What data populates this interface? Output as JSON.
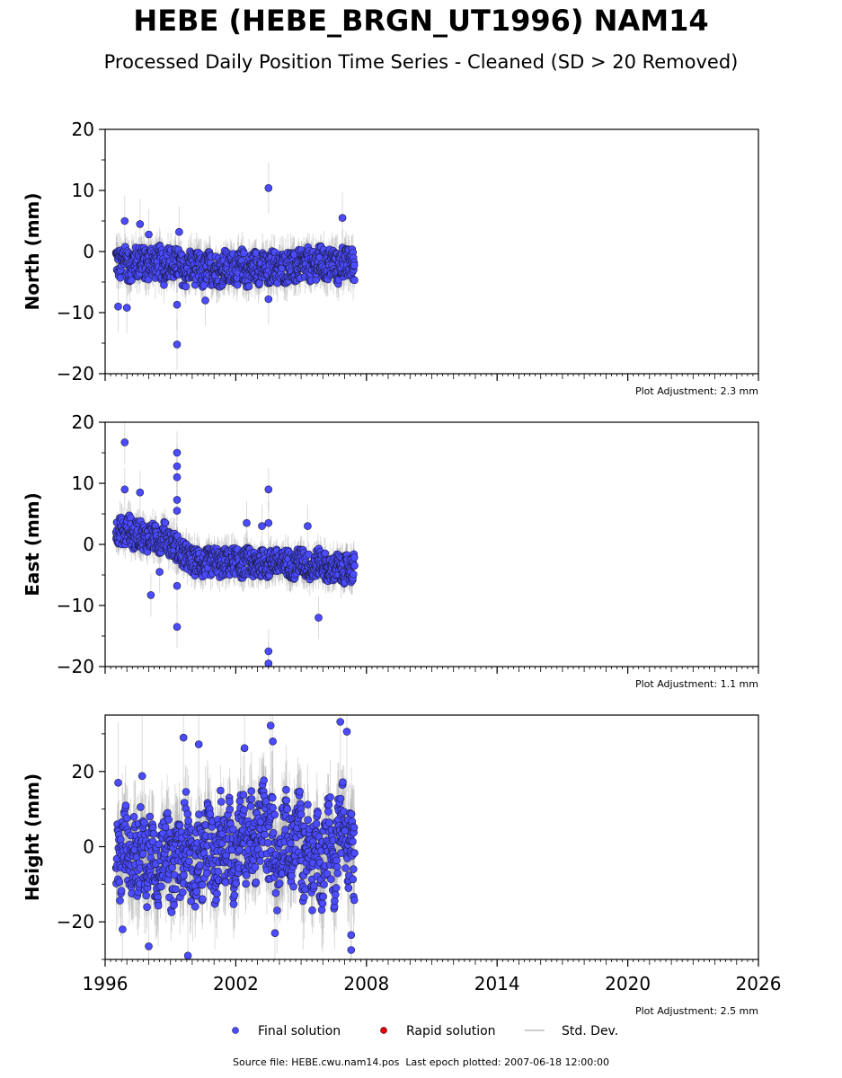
{
  "title": "HEBE (HEBE_BRGN_UT1996) NAM14",
  "subtitle": "Processed Daily Position Time Series - Cleaned (SD > 20 Removed)",
  "footer": {
    "source": "Source file: HEBE.cwu.nam14.pos",
    "last_epoch": "Last epoch plotted: 2007-06-18 12:00:00"
  },
  "legend": [
    {
      "label": "Final solution",
      "color": "#4b4bff",
      "marker": "dot"
    },
    {
      "label": "Rapid solution",
      "color": "#e00000",
      "marker": "dot"
    },
    {
      "label": "Std. Dev.",
      "color": "#cccccc",
      "marker": "line"
    }
  ],
  "chart_data": [
    {
      "type": "scatter",
      "ylabel": "North (mm)",
      "xlim": [
        1996,
        2026
      ],
      "ylim": [
        -20,
        20
      ],
      "yticks": [
        -20,
        -10,
        0,
        10,
        20
      ],
      "xticks": [
        1996,
        2002,
        2008,
        2014,
        2020,
        2026
      ],
      "show_x_tick_labels": false,
      "adjustment": "Plot Adjustment: 2.3 mm",
      "series": [
        {
          "name": "Final solution",
          "color": "#4b4bff",
          "x": [
            1996.5,
            1996.7,
            1996.9,
            1997.1,
            1997.3,
            1997.5,
            1997.7,
            1997.9,
            1998.1,
            1998.3,
            1998.5,
            1998.7,
            1998.9,
            1999.1,
            1999.3,
            1999.5,
            1999.7,
            1999.9,
            2000.1,
            2000.3,
            2000.5,
            2000.7,
            2000.9,
            2001.1,
            2001.3,
            2001.5,
            2001.7,
            2001.9,
            2002.1,
            2002.3,
            2002.5,
            2002.7,
            2002.9,
            2003.1,
            2003.3,
            2003.5,
            2003.7,
            2003.9,
            2004.1,
            2004.3,
            2004.5,
            2004.7,
            2004.9,
            2005.1,
            2005.3,
            2005.5,
            2005.7,
            2005.9,
            2006.1,
            2006.3,
            2006.5,
            2006.7,
            2006.9,
            2007.1,
            2007.3,
            2007.46
          ],
          "y": [
            -1.0,
            -2.5,
            -0.5,
            -3.0,
            -1.5,
            -2.0,
            -0.8,
            -2.8,
            -1.2,
            -2.0,
            -1.5,
            -3.0,
            -1.0,
            -2.5,
            -1.8,
            -2.8,
            -3.5,
            -2.0,
            -3.0,
            -2.5,
            -3.8,
            -2.2,
            -3.0,
            -2.8,
            -3.5,
            -2.0,
            -3.2,
            -2.5,
            -3.0,
            -2.0,
            -3.5,
            -2.8,
            -2.2,
            -3.0,
            -2.5,
            -3.5,
            -2.0,
            -3.0,
            -2.5,
            -2.8,
            -2.0,
            -3.0,
            -2.2,
            -2.5,
            -1.8,
            -2.8,
            -2.0,
            -1.5,
            -2.5,
            -2.0,
            -1.8,
            -3.0,
            -1.5,
            -2.2,
            -1.8,
            -2.5
          ],
          "spread": 2.6,
          "outliers_x": [
            1996.6,
            1996.9,
            1997.0,
            1997.6,
            1998.0,
            1999.3,
            1999.3,
            1999.4,
            2003.5,
            2003.5,
            2006.9,
            2000.6
          ],
          "outliers_y": [
            -9.0,
            5.0,
            -9.2,
            4.5,
            2.8,
            -15.2,
            -8.7,
            3.2,
            10.4,
            -7.8,
            5.5,
            -8.0
          ]
        },
        {
          "name": "Rapid solution",
          "color": "#e00000",
          "x": [],
          "y": []
        }
      ]
    },
    {
      "type": "scatter",
      "ylabel": "East (mm)",
      "xlim": [
        1996,
        2026
      ],
      "ylim": [
        -20,
        20
      ],
      "yticks": [
        -20,
        -10,
        0,
        10,
        20
      ],
      "xticks": [
        1996,
        2002,
        2008,
        2014,
        2020,
        2026
      ],
      "show_x_tick_labels": false,
      "adjustment": "Plot Adjustment: 1.1 mm",
      "series": [
        {
          "name": "Final solution",
          "color": "#4b4bff",
          "x": [
            1996.5,
            1996.7,
            1996.9,
            1997.1,
            1997.3,
            1997.5,
            1997.7,
            1997.9,
            1998.1,
            1998.3,
            1998.5,
            1998.7,
            1998.9,
            1999.1,
            1999.3,
            1999.5,
            1999.7,
            1999.9,
            2000.1,
            2000.3,
            2000.5,
            2000.7,
            2000.9,
            2001.1,
            2001.3,
            2001.5,
            2001.7,
            2001.9,
            2002.1,
            2002.3,
            2002.5,
            2002.7,
            2002.9,
            2003.1,
            2003.3,
            2003.5,
            2003.7,
            2003.9,
            2004.1,
            2004.3,
            2004.5,
            2004.7,
            2004.9,
            2005.1,
            2005.3,
            2005.5,
            2005.7,
            2005.9,
            2006.1,
            2006.3,
            2006.5,
            2006.7,
            2006.9,
            2007.1,
            2007.3,
            2007.46
          ],
          "y": [
            2.0,
            2.5,
            1.5,
            3.0,
            1.0,
            2.0,
            1.5,
            0.8,
            1.5,
            1.0,
            0.5,
            1.8,
            0.5,
            0.0,
            -0.5,
            -1.5,
            -2.0,
            -2.5,
            -3.0,
            -2.5,
            -3.5,
            -2.8,
            -3.0,
            -2.5,
            -3.5,
            -2.8,
            -3.2,
            -2.5,
            -3.0,
            -3.5,
            -2.5,
            -3.0,
            -3.8,
            -3.2,
            -2.8,
            -3.5,
            -2.5,
            -3.0,
            -3.5,
            -2.8,
            -3.2,
            -3.8,
            -2.5,
            -3.0,
            -3.5,
            -4.0,
            -3.0,
            -2.8,
            -3.5,
            -4.5,
            -4.0,
            -3.5,
            -4.5,
            -3.8,
            -4.2,
            -3.5
          ],
          "spread": 2.2,
          "outliers_x": [
            1996.9,
            1996.9,
            1997.6,
            1998.1,
            1998.5,
            1999.3,
            1999.3,
            1999.3,
            1999.3,
            1999.3,
            1999.3,
            1999.3,
            2002.5,
            2003.2,
            2003.5,
            2003.5,
            2003.5,
            2003.5,
            2005.8,
            2005.3
          ],
          "outliers_y": [
            16.7,
            9.0,
            8.5,
            -8.3,
            -4.5,
            15.0,
            12.8,
            11.0,
            7.3,
            5.5,
            -6.8,
            -13.5,
            3.5,
            3.0,
            9.0,
            3.5,
            -17.5,
            -19.5,
            -12.0,
            3.0
          ]
        },
        {
          "name": "Rapid solution",
          "color": "#e00000",
          "x": [],
          "y": []
        }
      ]
    },
    {
      "type": "scatter",
      "ylabel": "Height (mm)",
      "xlim": [
        1996,
        2026
      ],
      "ylim": [
        -30,
        35
      ],
      "yticks": [
        -20,
        0,
        20
      ],
      "xticks": [
        1996,
        2002,
        2008,
        2014,
        2020,
        2026
      ],
      "xtick_labels": [
        "1996",
        "2002",
        "2008",
        "2014",
        "2020",
        "2026"
      ],
      "show_x_tick_labels": true,
      "adjustment": "Plot Adjustment: 2.5 mm",
      "series": [
        {
          "name": "Final solution",
          "color": "#4b4bff",
          "x": [
            1996.5,
            1996.7,
            1996.9,
            1997.1,
            1997.3,
            1997.5,
            1997.7,
            1997.9,
            1998.1,
            1998.3,
            1998.5,
            1998.7,
            1998.9,
            1999.1,
            1999.3,
            1999.5,
            1999.7,
            1999.9,
            2000.1,
            2000.3,
            2000.5,
            2000.7,
            2000.9,
            2001.1,
            2001.3,
            2001.5,
            2001.7,
            2001.9,
            2002.1,
            2002.3,
            2002.5,
            2002.7,
            2002.9,
            2003.1,
            2003.3,
            2003.5,
            2003.7,
            2003.9,
            2004.1,
            2004.3,
            2004.5,
            2004.7,
            2004.9,
            2005.1,
            2005.3,
            2005.5,
            2005.7,
            2005.9,
            2006.1,
            2006.3,
            2006.5,
            2006.7,
            2006.9,
            2007.1,
            2007.3,
            2007.46
          ],
          "y": [
            -2,
            -6,
            4,
            -8,
            0,
            -5,
            6,
            -10,
            2,
            -4,
            -8,
            4,
            -2,
            -10,
            2,
            -6,
            6,
            -4,
            -8,
            0,
            -6,
            4,
            -2,
            -8,
            6,
            -2,
            4,
            -6,
            2,
            8,
            -4,
            6,
            -2,
            4,
            10,
            -2,
            6,
            -8,
            2,
            6,
            -4,
            0,
            8,
            -6,
            2,
            -8,
            4,
            -10,
            0,
            6,
            -8,
            4,
            10,
            -4,
            2,
            -6
          ],
          "spread": 10.0,
          "outliers_x": [
            1996.6,
            1996.8,
            1997.7,
            1998.0,
            1999.6,
            2000.3,
            2002.4,
            2003.6,
            2003.7,
            2006.8,
            2007.1,
            2007.3,
            1999.8,
            2003.8,
            2007.3
          ],
          "outliers_y": [
            17.0,
            -22.0,
            18.8,
            -26.5,
            29.0,
            27.2,
            26.2,
            32.2,
            28.0,
            33.2,
            30.6,
            -27.5,
            -29.0,
            -23.0,
            -23.5
          ]
        },
        {
          "name": "Rapid solution",
          "color": "#e00000",
          "x": [],
          "y": []
        }
      ]
    }
  ]
}
